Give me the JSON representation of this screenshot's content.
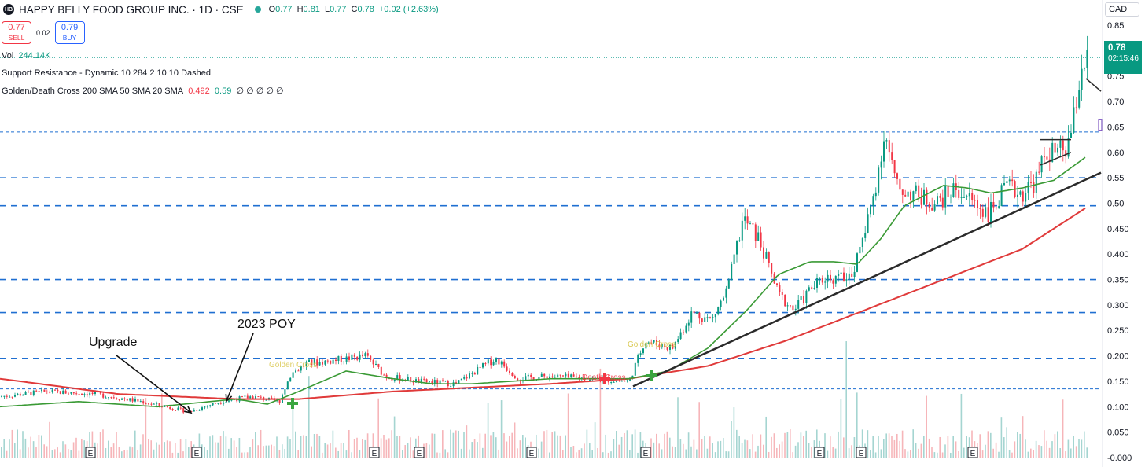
{
  "header": {
    "logo_text": "HB",
    "title": "HAPPY BELLY FOOD GROUP INC. · 1D · CSE",
    "ohlc": [
      {
        "k": "O",
        "v": "0.77"
      },
      {
        "k": "H",
        "v": "0.81"
      },
      {
        "k": "L",
        "v": "0.77"
      },
      {
        "k": "C",
        "v": "0.78"
      },
      {
        "k": "",
        "v": "+0.02 (+2.63%)"
      }
    ],
    "currency": "CAD"
  },
  "trade": {
    "sell_price": "0.77",
    "sell_label": "SELL",
    "spread": "0.02",
    "buy_price": "0.79",
    "buy_label": "BUY"
  },
  "legends": {
    "vol_label": "Vol",
    "vol_value": "244.14K",
    "sr_text": "Support Resistance - Dynamic 10 284 2 10 10 Dashed",
    "gdc_label": "Golden/Death Cross 200 SMA 50 SMA 20 SMA",
    "gdc_v1": "0.492",
    "gdc_v2": "0.59",
    "gdc_rest": "∅ ∅ ∅ ∅ ∅"
  },
  "price_badge": {
    "price": "0.78",
    "countdown": "02:15:46"
  },
  "colors": {
    "up": "#089981",
    "down": "#f23645",
    "sma_long": "#e03a3a",
    "sma_short": "#3a9a35",
    "sr_line": "#1f6fd1",
    "dotted_last": "#26a69a",
    "trendline": "#2b2b2b",
    "volume_up": "#8fcbc5",
    "volume_down": "#f4a2a8"
  },
  "chart_data": {
    "type": "candlestick",
    "y_axis_ticks": [
      "0.85",
      "0.80",
      "0.75",
      "0.70",
      "0.65",
      "0.60",
      "0.55",
      "0.50",
      "0.450",
      "0.400",
      "0.350",
      "0.300",
      "0.250",
      "0.200",
      "0.150",
      "0.100",
      "0.050",
      "-0.000"
    ],
    "ylim": [
      0.0,
      0.85
    ],
    "support_resistance_levels": [
      0.64,
      0.55,
      0.495,
      0.35,
      0.285,
      0.195,
      0.135
    ],
    "last_price": 0.78,
    "sma_long_anchors": [
      [
        0,
        0.155
      ],
      [
        150,
        0.125
      ],
      [
        300,
        0.115
      ],
      [
        380,
        0.115
      ],
      [
        500,
        0.13
      ],
      [
        700,
        0.145
      ],
      [
        800,
        0.155
      ],
      [
        900,
        0.18
      ],
      [
        1000,
        0.23
      ],
      [
        1100,
        0.29
      ],
      [
        1200,
        0.35
      ],
      [
        1300,
        0.41
      ],
      [
        1380,
        0.49
      ]
    ],
    "sma_short_anchors": [
      [
        0,
        0.1
      ],
      [
        100,
        0.11
      ],
      [
        200,
        0.1
      ],
      [
        300,
        0.115
      ],
      [
        340,
        0.105
      ],
      [
        380,
        0.13
      ],
      [
        440,
        0.17
      ],
      [
        500,
        0.155
      ],
      [
        550,
        0.145
      ],
      [
        600,
        0.145
      ],
      [
        700,
        0.155
      ],
      [
        800,
        0.155
      ],
      [
        850,
        0.17
      ],
      [
        900,
        0.215
      ],
      [
        950,
        0.29
      ],
      [
        990,
        0.36
      ],
      [
        1030,
        0.385
      ],
      [
        1060,
        0.385
      ],
      [
        1090,
        0.38
      ],
      [
        1120,
        0.43
      ],
      [
        1150,
        0.495
      ],
      [
        1200,
        0.535
      ],
      [
        1230,
        0.53
      ],
      [
        1260,
        0.52
      ],
      [
        1300,
        0.53
      ],
      [
        1340,
        0.545
      ],
      [
        1380,
        0.59
      ]
    ],
    "price_anchors": [
      [
        0,
        0.12
      ],
      [
        60,
        0.13
      ],
      [
        120,
        0.125
      ],
      [
        180,
        0.11
      ],
      [
        240,
        0.09
      ],
      [
        280,
        0.11
      ],
      [
        320,
        0.12
      ],
      [
        355,
        0.11
      ],
      [
        370,
        0.165
      ],
      [
        390,
        0.185
      ],
      [
        420,
        0.19
      ],
      [
        465,
        0.2
      ],
      [
        490,
        0.16
      ],
      [
        530,
        0.15
      ],
      [
        580,
        0.145
      ],
      [
        630,
        0.195
      ],
      [
        660,
        0.155
      ],
      [
        700,
        0.16
      ],
      [
        750,
        0.155
      ],
      [
        800,
        0.15
      ],
      [
        820,
        0.23
      ],
      [
        855,
        0.215
      ],
      [
        880,
        0.285
      ],
      [
        905,
        0.27
      ],
      [
        925,
        0.33
      ],
      [
        945,
        0.47
      ],
      [
        965,
        0.43
      ],
      [
        990,
        0.32
      ],
      [
        1010,
        0.29
      ],
      [
        1030,
        0.33
      ],
      [
        1050,
        0.355
      ],
      [
        1080,
        0.35
      ],
      [
        1100,
        0.44
      ],
      [
        1115,
        0.55
      ],
      [
        1125,
        0.64
      ],
      [
        1140,
        0.53
      ],
      [
        1160,
        0.52
      ],
      [
        1190,
        0.5
      ],
      [
        1215,
        0.53
      ],
      [
        1240,
        0.5
      ],
      [
        1258,
        0.48
      ],
      [
        1280,
        0.53
      ],
      [
        1300,
        0.52
      ],
      [
        1320,
        0.55
      ],
      [
        1330,
        0.6
      ],
      [
        1355,
        0.6
      ],
      [
        1365,
        0.66
      ],
      [
        1375,
        0.77
      ],
      [
        1382,
        0.78
      ]
    ],
    "earnings_markers_label": "E",
    "signals": [
      {
        "label": "Golden Cross"
      },
      {
        "label": "Golden Cross"
      },
      {
        "label": "Death Cross"
      }
    ],
    "annotations": [
      "Upgrade",
      "2023 POY"
    ]
  }
}
